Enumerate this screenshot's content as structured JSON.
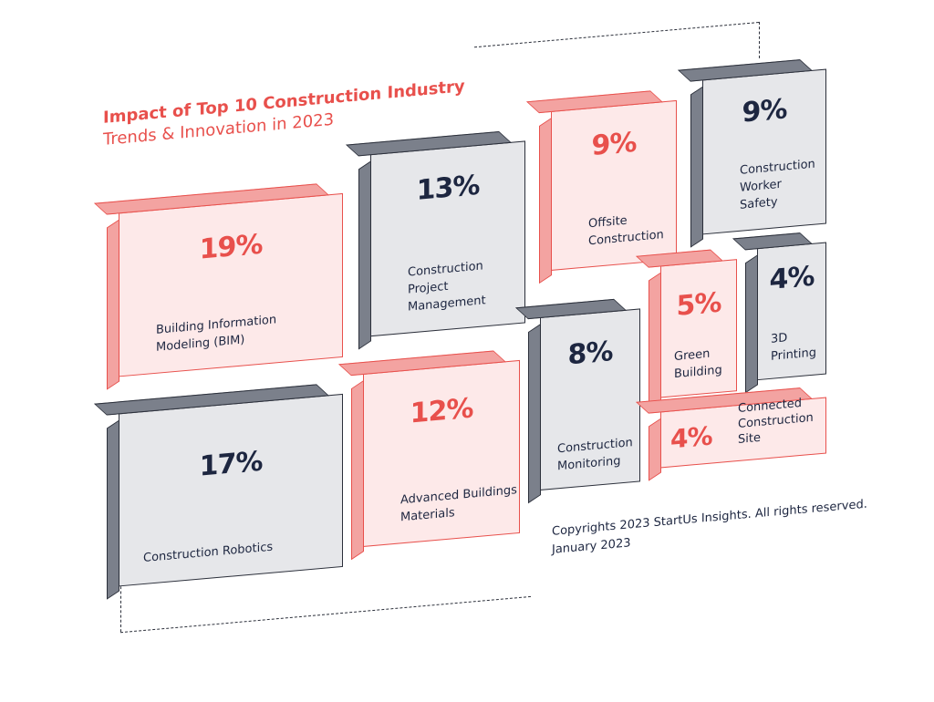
{
  "title": "Impact of Top 10 Construction Industry",
  "subtitle": "Trends & Innovation in 2023",
  "copyright": "Copyrights 2023 StartUs Insights. All rights reserved.",
  "date": "January 2023",
  "colors": {
    "accent": "#e8504c",
    "dark": "#1d2640",
    "gray_face": "#e6e7ea",
    "red_face": "#fde9e9"
  },
  "chart_data": {
    "type": "treemap",
    "title": "Impact of Top 10 Construction Industry",
    "subtitle": "Trends & Innovation in 2023",
    "items": [
      {
        "name": "Building Information Modeling (BIM)",
        "label": "Building Information\nModeling (BIM)",
        "value": 19,
        "display": "19%",
        "color": "red"
      },
      {
        "name": "Construction Project Management",
        "label": "Construction Project\nManagement",
        "value": 13,
        "display": "13%",
        "color": "gray"
      },
      {
        "name": "Offsite Construction",
        "label": "Offsite\nConstruction",
        "value": 9,
        "display": "9%",
        "color": "red"
      },
      {
        "name": "Construction Worker Safety",
        "label": "Construction\nWorker\nSafety",
        "value": 9,
        "display": "9%",
        "color": "gray"
      },
      {
        "name": "Green Building",
        "label": "Green\nBuilding",
        "value": 5,
        "display": "5%",
        "color": "red"
      },
      {
        "name": "3D Printing",
        "label": "3D\nPrinting",
        "value": 4,
        "display": "4%",
        "color": "gray"
      },
      {
        "name": "Construction Robotics",
        "label": "Construction Robotics",
        "value": 17,
        "display": "17%",
        "color": "gray"
      },
      {
        "name": "Advanced Buildings Materials",
        "label": "Advanced Buildings\nMaterials",
        "value": 12,
        "display": "12%",
        "color": "red"
      },
      {
        "name": "Construction Monitoring",
        "label": "Construction\nMonitoring",
        "value": 8,
        "display": "8%",
        "color": "gray"
      },
      {
        "name": "Connected Construction Site",
        "label": "Connected\nConstruction Site",
        "value": 4,
        "display": "4%",
        "color": "red"
      }
    ]
  }
}
